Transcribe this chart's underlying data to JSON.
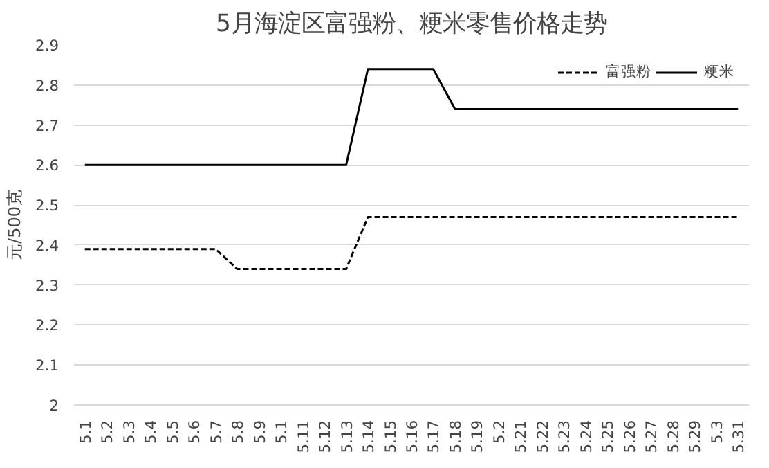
{
  "chart_data": {
    "type": "line",
    "title": "5月海淀区富强粉、粳米零售价格走势",
    "ylabel": "元/500克",
    "categories": [
      "5.1",
      "5.2",
      "5.3",
      "5.4",
      "5.5",
      "5.6",
      "5.7",
      "5.8",
      "5.9",
      "5.1",
      "5.11",
      "5.12",
      "5.13",
      "5.14",
      "5.15",
      "5.16",
      "5.17",
      "5.18",
      "5.19",
      "5.2",
      "5.21",
      "5.22",
      "5.23",
      "5.24",
      "5.25",
      "5.26",
      "5.27",
      "5.28",
      "5.29",
      "5.3",
      "5.31"
    ],
    "series": [
      {
        "name": "富强粉",
        "color": "#000000",
        "line_style": "dashed",
        "values": [
          2.39,
          2.39,
          2.39,
          2.39,
          2.39,
          2.39,
          2.39,
          2.34,
          2.34,
          2.34,
          2.34,
          2.34,
          2.34,
          2.47,
          2.47,
          2.47,
          2.47,
          2.47,
          2.47,
          2.47,
          2.47,
          2.47,
          2.47,
          2.47,
          2.47,
          2.47,
          2.47,
          2.47,
          2.47,
          2.47,
          2.47
        ]
      },
      {
        "name": "粳米",
        "color": "#000000",
        "line_style": "solid",
        "values": [
          2.6,
          2.6,
          2.6,
          2.6,
          2.6,
          2.6,
          2.6,
          2.6,
          2.6,
          2.6,
          2.6,
          2.6,
          2.6,
          2.84,
          2.84,
          2.84,
          2.84,
          2.74,
          2.74,
          2.74,
          2.74,
          2.74,
          2.74,
          2.74,
          2.74,
          2.74,
          2.74,
          2.74,
          2.74,
          2.74,
          2.74
        ]
      }
    ],
    "ylim": [
      2,
      2.9
    ],
    "yticks": [
      2,
      {
        "value": 2.1,
        "label": "2.1"
      },
      {
        "value": 2.2,
        "label": "2.2"
      },
      {
        "value": 2.3,
        "label": "2.3"
      },
      {
        "value": 2.4,
        "label": "2.4"
      },
      {
        "value": 2.5,
        "label": "2.5"
      },
      {
        "value": 2.6,
        "label": "2.6"
      },
      {
        "value": 2.7,
        "label": "2.7"
      },
      {
        "value": 2.8,
        "label": "2.8"
      },
      {
        "value": 2.9,
        "label": "2.9"
      }
    ],
    "grid": "y",
    "legend": "top right",
    "marker": "none"
  }
}
